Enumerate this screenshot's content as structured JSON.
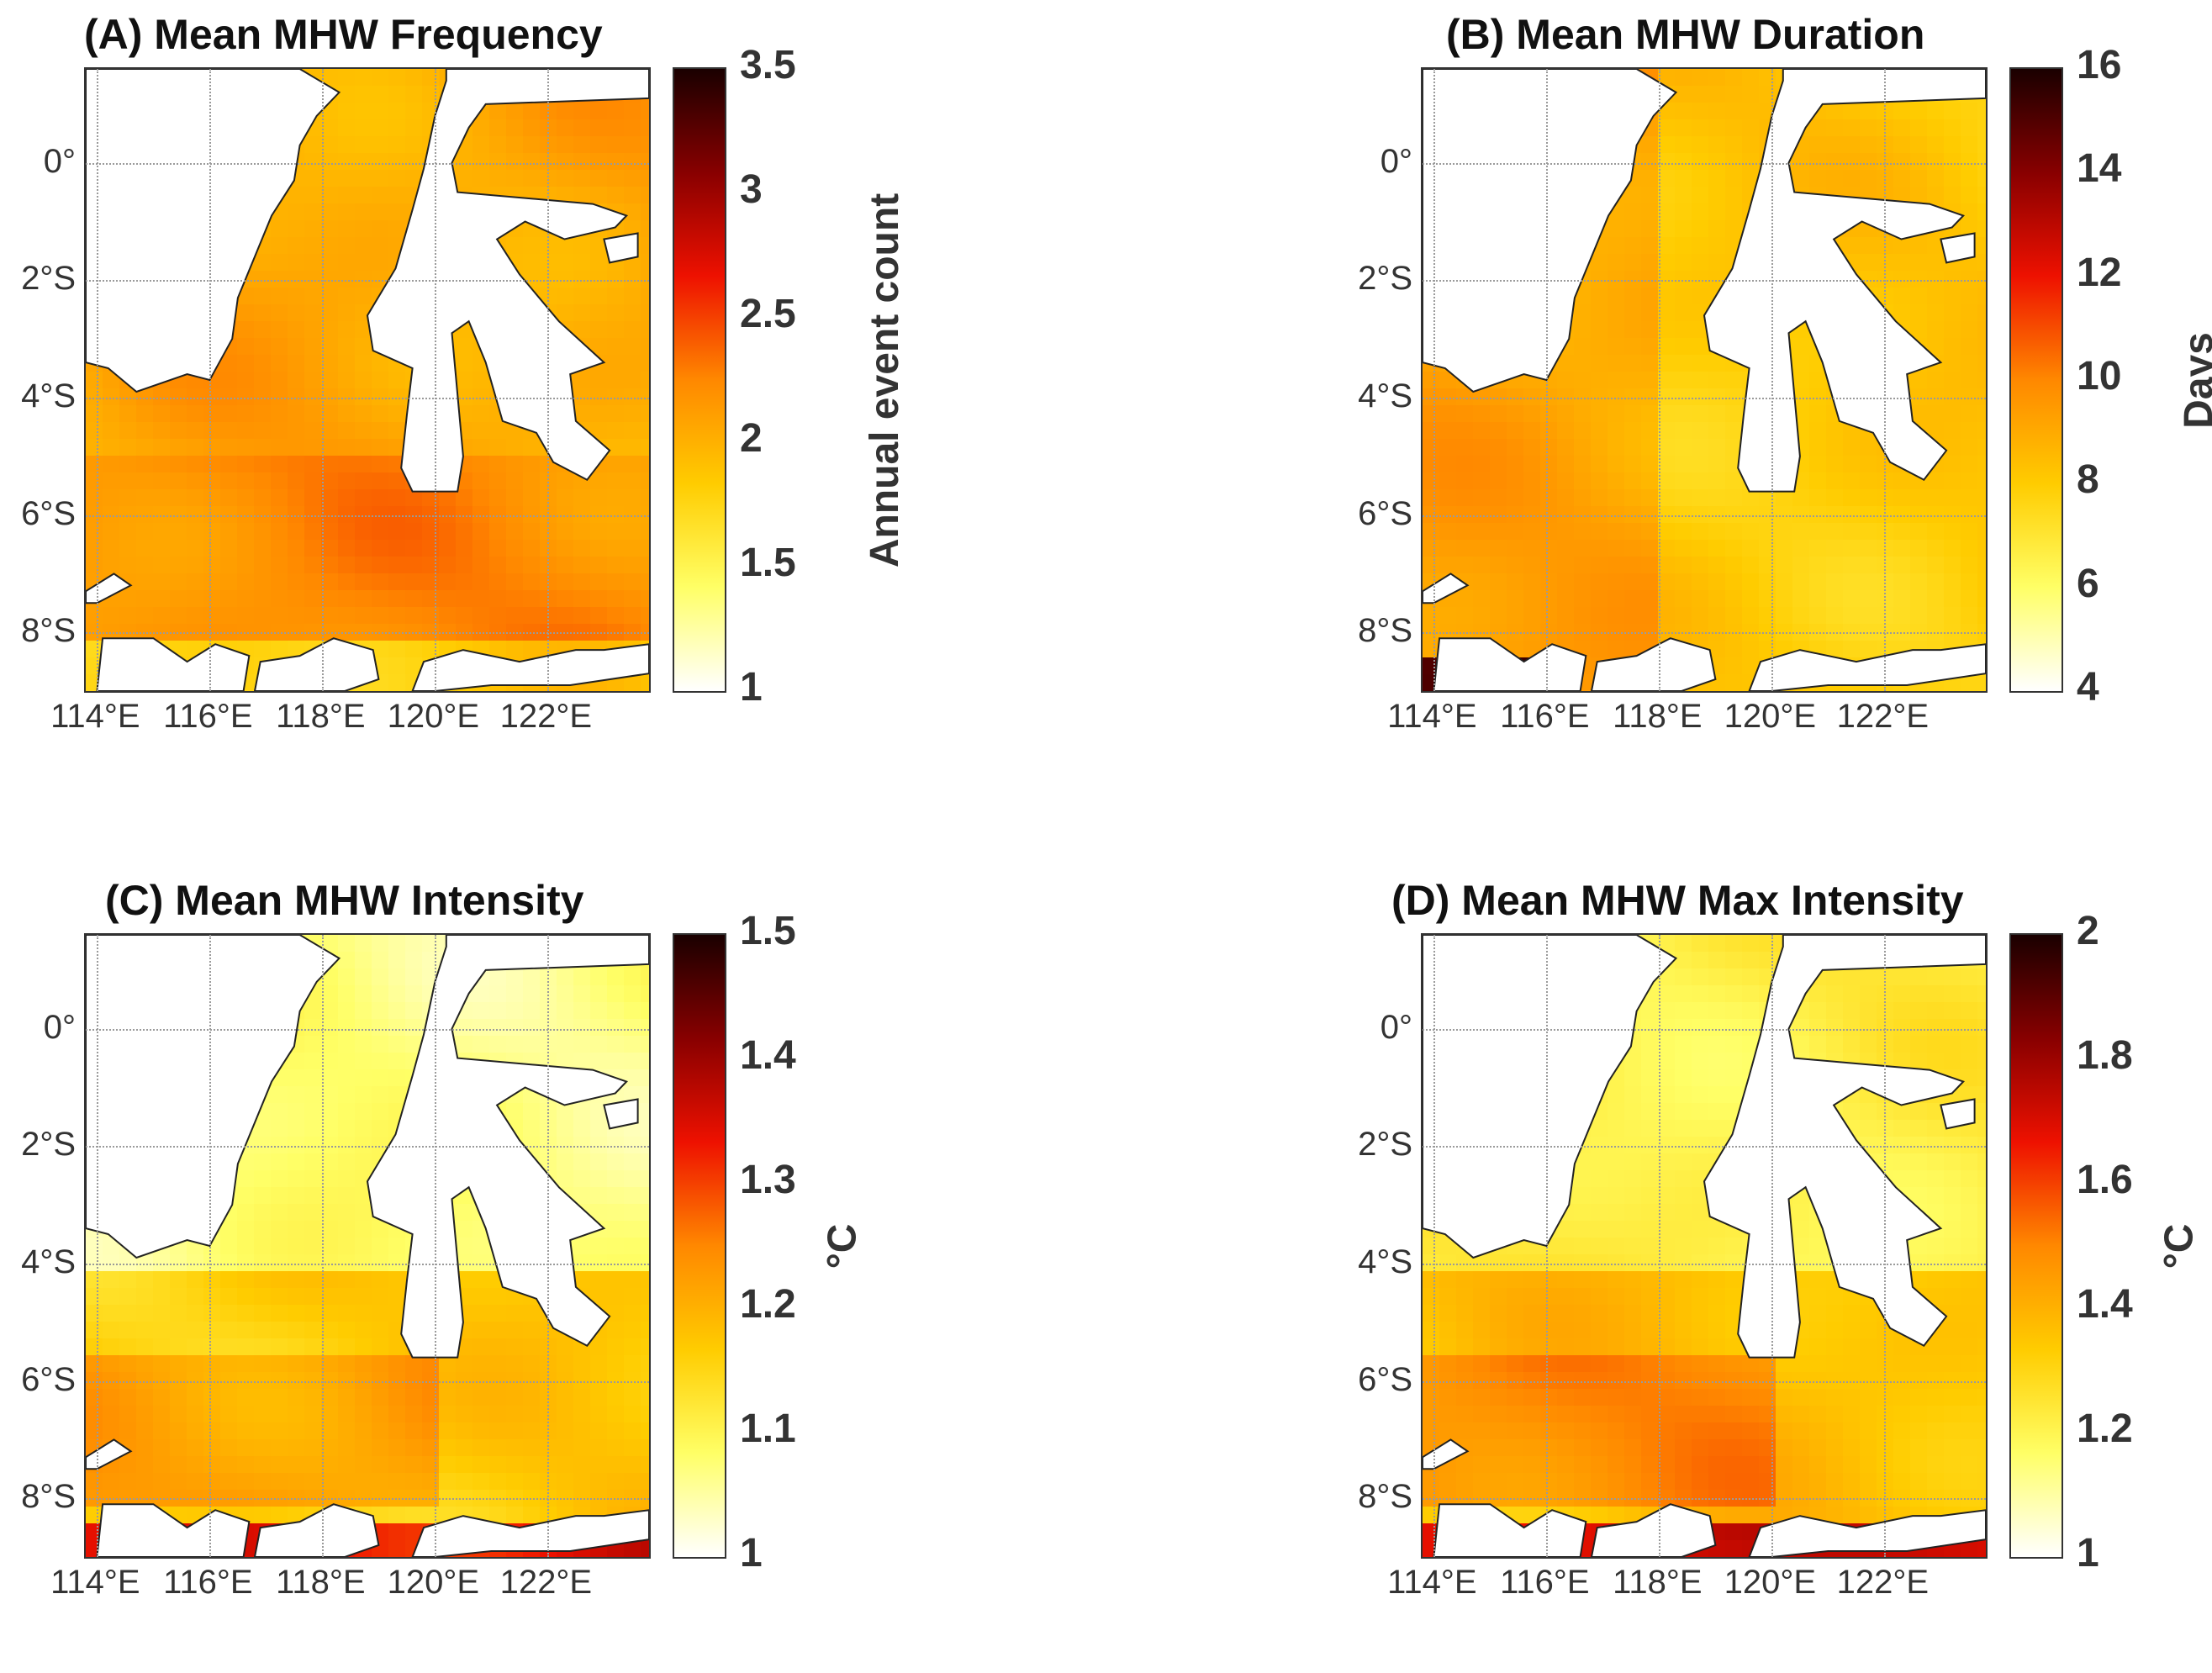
{
  "figure": {
    "panels": [
      {
        "title": "(A) Mean MHW Frequency",
        "colorbar": {
          "label": "Annual event count",
          "ticks": [
            "3.5",
            "3",
            "2.5",
            "2",
            "1.5",
            "1"
          ]
        }
      },
      {
        "title": "(B) Mean MHW Duration",
        "colorbar": {
          "label": "Days",
          "ticks": [
            "16",
            "14",
            "12",
            "10",
            "8",
            "6",
            "4"
          ]
        }
      },
      {
        "title": "(C) Mean MHW Intensity",
        "colorbar": {
          "label": "°C",
          "ticks": [
            "1.5",
            "1.4",
            "1.3",
            "1.2",
            "1.1",
            "1"
          ]
        }
      },
      {
        "title": "(D) Mean MHW Max Intensity",
        "colorbar": {
          "label": "°C",
          "ticks": [
            "2",
            "1.8",
            "1.6",
            "1.4",
            "1.2",
            "1"
          ]
        }
      }
    ],
    "lat_labels": [
      "0°",
      "2°S",
      "4°S",
      "6°S",
      "8°S"
    ],
    "lon_labels": [
      "114°E",
      "116°E",
      "118°E",
      "120°E",
      "122°E"
    ]
  },
  "colors": {
    "colormap": [
      "#ffffff",
      "#ffff66",
      "#ffcc00",
      "#ff8800",
      "#ee1100",
      "#880000",
      "#1a0000"
    ],
    "land": "#ffffff",
    "coast": "#222222"
  }
}
